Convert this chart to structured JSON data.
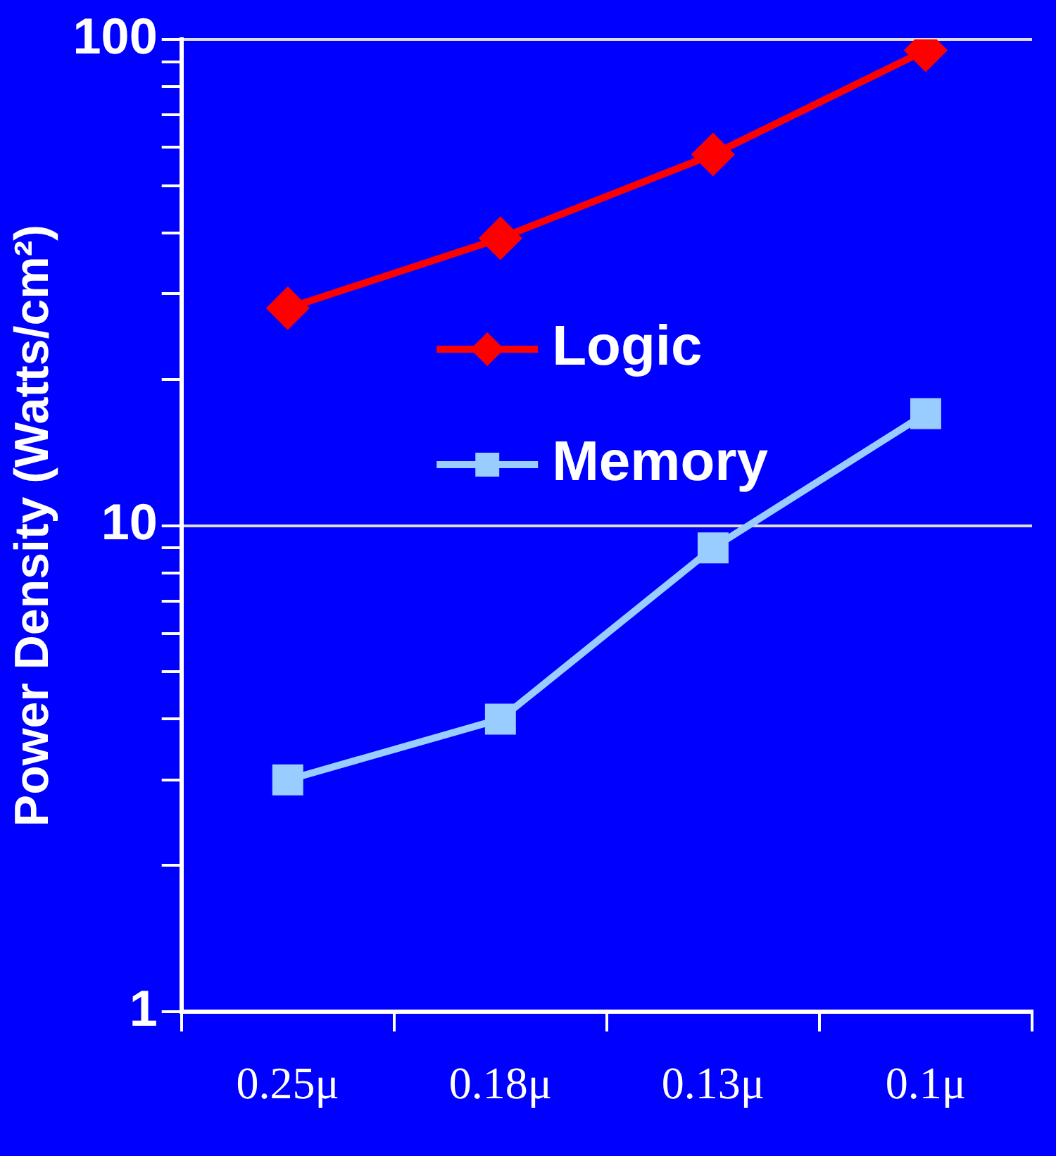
{
  "chart_data": {
    "type": "line",
    "ylabel": "Power Density (Watts/cm²)",
    "categories": [
      "0.25μ",
      "0.18μ",
      "0.13μ",
      "0.1μ"
    ],
    "series": [
      {
        "name": "Logic",
        "color": "#ff0000",
        "marker": "diamond",
        "values": [
          28,
          39,
          58,
          95
        ]
      },
      {
        "name": "Memory",
        "color": "#99ccff",
        "marker": "square",
        "values": [
          3,
          4,
          9,
          17
        ]
      }
    ],
    "log": "y",
    "ylim": [
      1,
      100
    ],
    "yticks": [
      1,
      {
        "value": 2,
        "label": null
      },
      {
        "value": 3,
        "label": null
      },
      {
        "value": 4,
        "label": null
      },
      {
        "value": 5,
        "label": null
      },
      {
        "value": 6,
        "label": null
      },
      {
        "value": 7,
        "label": null
      },
      {
        "value": 8,
        "label": null
      },
      {
        "value": 9,
        "label": null
      },
      10,
      {
        "value": 20,
        "label": null
      },
      {
        "value": 30,
        "label": null
      },
      {
        "value": 40,
        "label": null
      },
      {
        "value": 50,
        "label": null
      },
      {
        "value": 60,
        "label": null
      },
      {
        "value": 70,
        "label": null
      },
      {
        "value": 80,
        "label": null
      },
      {
        "value": 90,
        "label": null
      },
      100
    ],
    "grid": "y",
    "legend": "top right",
    "line_style": "solid"
  }
}
